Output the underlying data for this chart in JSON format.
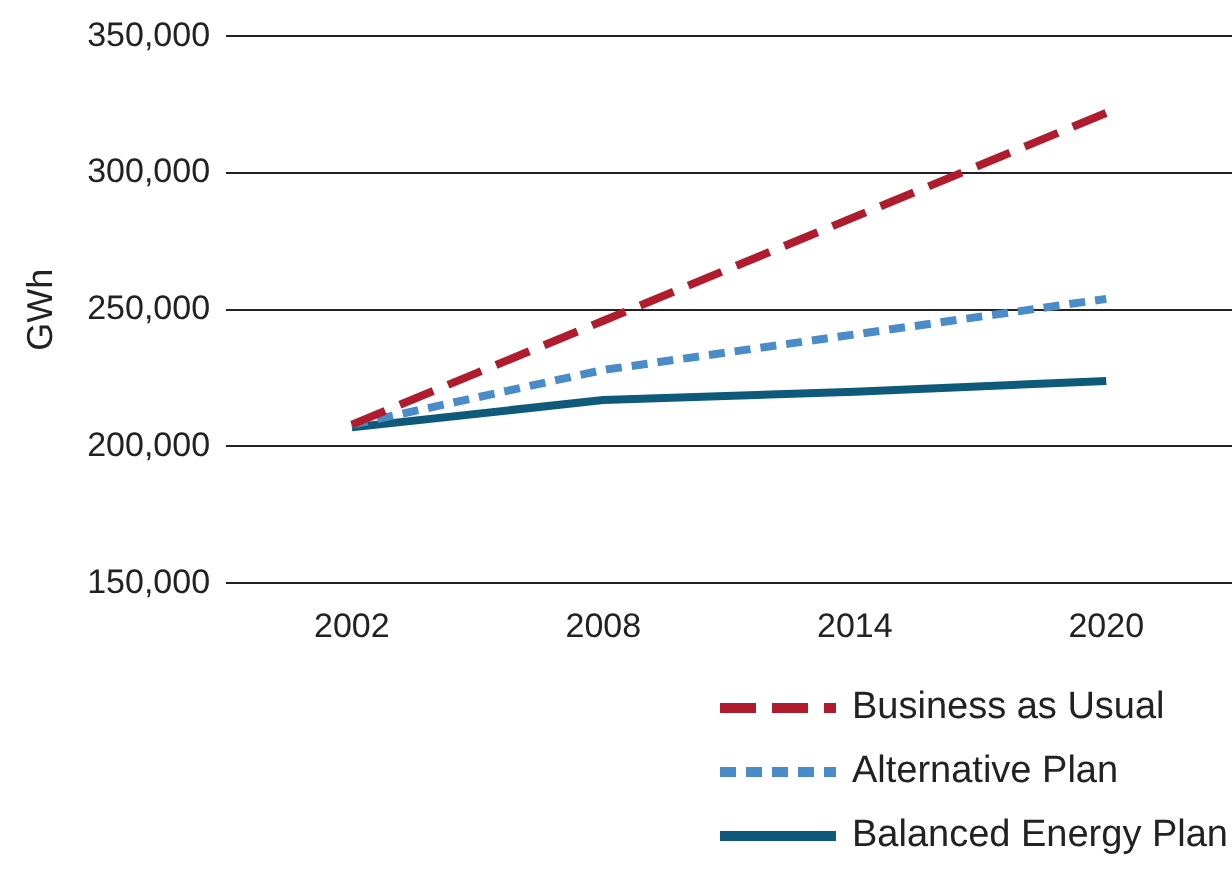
{
  "chart_data": {
    "type": "line",
    "ylabel": "GWh",
    "categories": [
      "2002",
      "2008",
      "2014",
      "2020"
    ],
    "series": [
      {
        "name": "Business as Usual",
        "color": "#b01c2e",
        "line_style": "dashed",
        "values": [
          208000,
          246000,
          284000,
          322000
        ]
      },
      {
        "name": "Alternative Plan",
        "color": "#4a8cc8",
        "line_style": "dotted",
        "values": [
          208000,
          228000,
          241000,
          254000
        ]
      },
      {
        "name": "Balanced Energy Plan",
        "color": "#0f5a7a",
        "line_style": "solid",
        "values": [
          207000,
          217000,
          220000,
          224000
        ]
      }
    ],
    "ylim": [
      150000,
      350000
    ],
    "yticks": [
      {
        "value": 150000,
        "label": "150,000"
      },
      {
        "value": 200000,
        "label": "200,000"
      },
      {
        "value": 250000,
        "label": "250,000"
      },
      {
        "value": 300000,
        "label": "300,000"
      },
      {
        "value": 350000,
        "label": "350,000"
      }
    ],
    "grid": "y",
    "legend": "bottom right",
    "marker": "none"
  }
}
